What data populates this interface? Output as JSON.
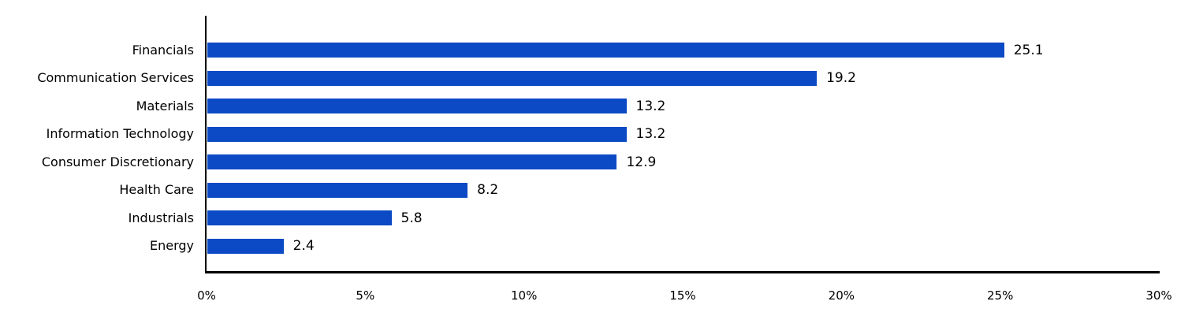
{
  "chart_data": {
    "type": "bar",
    "orientation": "horizontal",
    "title": "",
    "xlabel": "",
    "ylabel": "",
    "categories": [
      "Financials",
      "Communication Services",
      "Materials",
      "Information Technology",
      "Consumer Discretionary",
      "Health Care",
      "Industrials",
      "Energy"
    ],
    "values": [
      25.1,
      19.2,
      13.2,
      13.2,
      12.9,
      8.2,
      5.8,
      2.4
    ],
    "value_labels": [
      "25.1",
      "19.2",
      "13.2",
      "13.2",
      "12.9",
      "8.2",
      "5.8",
      "2.4"
    ],
    "xlim": [
      0,
      30
    ],
    "x_tick_values": [
      0,
      5,
      10,
      15,
      20,
      25,
      30
    ],
    "x_tick_labels": [
      "0%",
      "5%",
      "10%",
      "15%",
      "20%",
      "25%",
      "30%"
    ],
    "grid": false,
    "legend": false,
    "bar_color": "#0C49C4",
    "axis_color": "#000000",
    "text_color": "#000000"
  }
}
